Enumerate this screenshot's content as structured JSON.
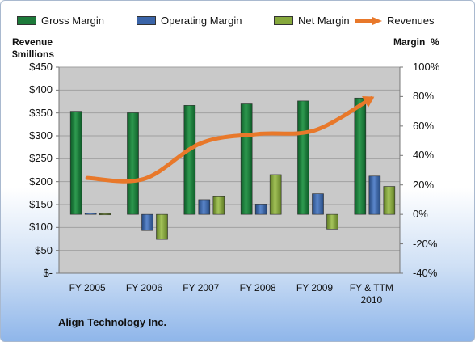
{
  "chart_data": {
    "type": "bar",
    "categories": [
      "FY 2005",
      "FY 2006",
      "FY 2007",
      "FY 2008",
      "FY 2009",
      "FY & TTM 2010"
    ],
    "category_lines": [
      [
        "FY 2005"
      ],
      [
        "FY 2006"
      ],
      [
        "FY 2007"
      ],
      [
        "FY 2008"
      ],
      [
        "FY 2009"
      ],
      [
        "FY & TTM",
        "2010"
      ]
    ],
    "series": [
      {
        "name": "Gross Margin",
        "type": "bar",
        "axis": "right",
        "values": [
          70,
          69,
          74,
          75,
          77,
          79
        ],
        "color": "#1d7a3a"
      },
      {
        "name": "Operating Margin",
        "type": "bar",
        "axis": "right",
        "values": [
          1,
          -11,
          10,
          7,
          14,
          26
        ],
        "color": "#3a64a8"
      },
      {
        "name": "Net Margin",
        "type": "bar",
        "axis": "right",
        "values": [
          0.5,
          -17,
          12,
          27,
          -10,
          19
        ],
        "color": "#86a83c"
      },
      {
        "name": "Revenues",
        "type": "line",
        "axis": "left",
        "values": [
          208,
          206,
          284,
          304,
          312,
          382
        ],
        "color": "#e8782a"
      }
    ],
    "left_axis": {
      "title_lines": [
        "Revenue",
        "$millions"
      ],
      "range": [
        0,
        450
      ],
      "ticks": [
        0,
        50,
        100,
        150,
        200,
        250,
        300,
        350,
        400,
        450
      ],
      "tick_labels": [
        "$-",
        "$50",
        "$100",
        "$150",
        "$200",
        "$250",
        "$300",
        "$350",
        "$400",
        "$450"
      ]
    },
    "right_axis": {
      "title": "Margin  %",
      "range": [
        -40,
        100
      ],
      "ticks": [
        -40,
        -20,
        0,
        20,
        40,
        60,
        80,
        100
      ],
      "tick_labels": [
        "-40%",
        "-20%",
        "0%",
        "20%",
        "40%",
        "60%",
        "80%",
        "100%"
      ]
    },
    "grid": true,
    "legend": "top",
    "plot_background": "#c9c9c9"
  },
  "company_name": "Align Technology Inc."
}
